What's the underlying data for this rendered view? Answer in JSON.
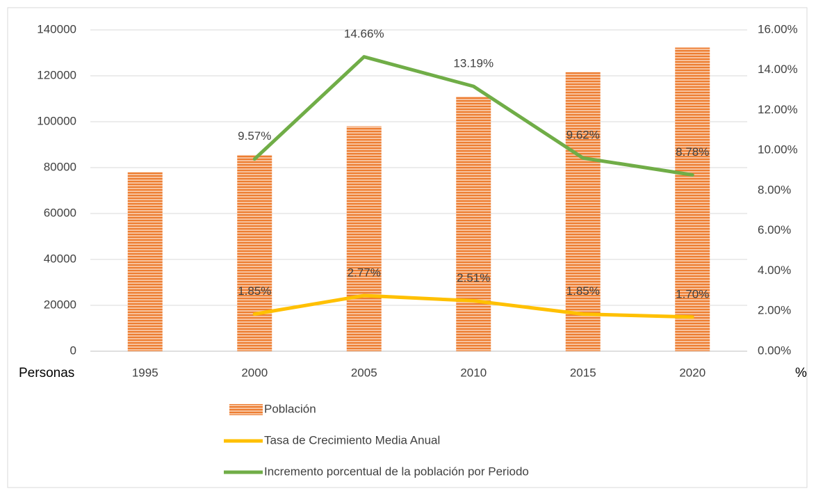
{
  "chart_data": {
    "type": "bar_line",
    "categories": [
      "1995",
      "2000",
      "2005",
      "2010",
      "2015",
      "2020"
    ],
    "ylabel": "Personas",
    "y2label": "%",
    "ylim": [
      0,
      140000
    ],
    "yticks": [
      0,
      20000,
      40000,
      60000,
      80000,
      100000,
      120000,
      140000
    ],
    "y2lim": [
      0,
      16
    ],
    "y2ticks": [
      {
        "value": 0,
        "label": "0.00%"
      },
      {
        "value": 2,
        "label": "2.00%"
      },
      {
        "value": 4,
        "label": "4.00%"
      },
      {
        "value": 6,
        "label": "6.00%"
      },
      {
        "value": 8,
        "label": "8.00%"
      },
      {
        "value": 10,
        "label": "10.00%"
      },
      {
        "value": 12,
        "label": "12.00%"
      },
      {
        "value": 14,
        "label": "14.00%"
      },
      {
        "value": 16,
        "label": "16.00%"
      }
    ],
    "grid": true,
    "legend": "bottom",
    "series": [
      {
        "name": "Población",
        "type": "bar",
        "color": "#ED7D31",
        "values": [
          78000,
          85500,
          98000,
          110900,
          121600,
          132300
        ]
      },
      {
        "name": "Tasa de Crecimiento Media Anual",
        "type": "line",
        "axis": "y2",
        "color": "#FFC000",
        "values": [
          null,
          1.85,
          2.77,
          2.51,
          1.85,
          1.7
        ],
        "value_labels": [
          null,
          "1.85%",
          "2.77%",
          "2.51%",
          "1.85%",
          "1.70%"
        ]
      },
      {
        "name": "Incremento porcentual de la  población por Periodo",
        "type": "line",
        "axis": "y2",
        "color": "#70AD47",
        "values": [
          null,
          9.57,
          14.66,
          13.19,
          9.62,
          8.78
        ],
        "value_labels": [
          null,
          "9.57%",
          "14.66%",
          "13.19%",
          "9.62%",
          "8.78%"
        ]
      }
    ]
  }
}
